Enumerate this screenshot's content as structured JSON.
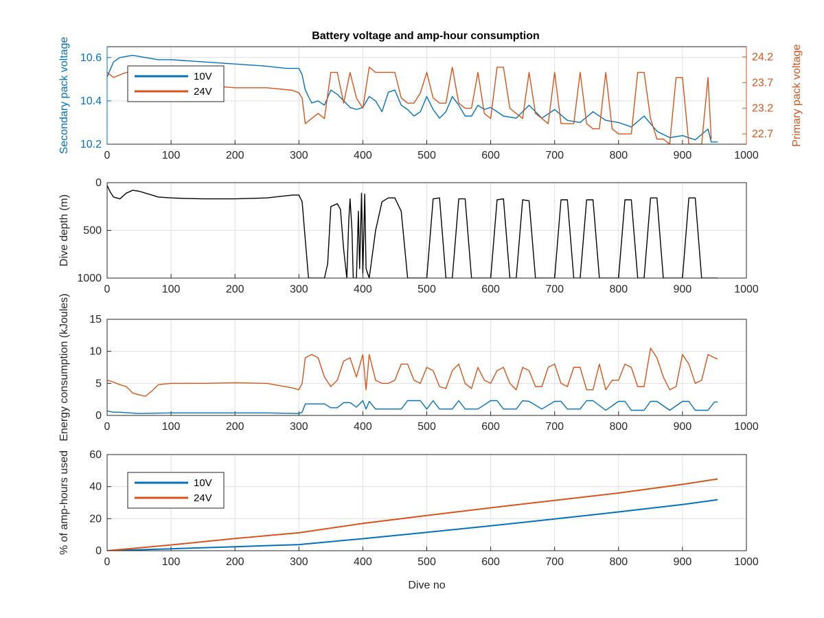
{
  "colors": {
    "series_10v": "#0072BD",
    "series_24v": "#D95319",
    "depth": "#000000",
    "axis": "#262626",
    "grid": "#DFDFDF"
  },
  "chart_data": [
    {
      "type": "line",
      "title": "Battery voltage and amp-hour consumption",
      "xlabel": "",
      "ylabel": "Secondary pack voltage",
      "ylabel_right": "Primary pack voltage",
      "xlim": [
        0,
        1000
      ],
      "ylim": [
        10.2,
        10.65
      ],
      "ylim_right": [
        22.5,
        24.4
      ],
      "xticks": [
        "0",
        "100",
        "200",
        "300",
        "400",
        "500",
        "600",
        "700",
        "800",
        "900",
        "1000"
      ],
      "yticks": [
        "10.2",
        "10.4",
        "10.6"
      ],
      "yticks_right": [
        "22.7",
        "23.2",
        "23.7",
        "24.2"
      ],
      "grid": true,
      "legend": {
        "placement": "top-left",
        "entries": [
          "10V",
          "24V"
        ]
      },
      "series": [
        {
          "name": "10V",
          "axis": "left",
          "x": [
            0,
            10,
            20,
            40,
            60,
            80,
            100,
            150,
            200,
            250,
            280,
            300,
            305,
            310,
            320,
            330,
            340,
            350,
            360,
            370,
            380,
            390,
            400,
            410,
            420,
            430,
            440,
            450,
            460,
            470,
            480,
            490,
            500,
            510,
            520,
            530,
            540,
            550,
            560,
            570,
            580,
            590,
            600,
            620,
            640,
            660,
            680,
            700,
            720,
            740,
            760,
            780,
            800,
            820,
            840,
            860,
            880,
            900,
            920,
            940,
            945,
            955
          ],
          "y": [
            10.51,
            10.58,
            10.6,
            10.61,
            10.6,
            10.59,
            10.59,
            10.58,
            10.57,
            10.56,
            10.55,
            10.55,
            10.52,
            10.45,
            10.39,
            10.4,
            10.38,
            10.45,
            10.43,
            10.4,
            10.37,
            10.36,
            10.37,
            10.42,
            10.4,
            10.35,
            10.44,
            10.45,
            10.38,
            10.36,
            10.33,
            10.35,
            10.42,
            10.36,
            10.32,
            10.35,
            10.42,
            10.38,
            10.33,
            10.33,
            10.38,
            10.36,
            10.37,
            10.33,
            10.32,
            10.38,
            10.32,
            10.36,
            10.31,
            10.3,
            10.35,
            10.31,
            10.3,
            10.28,
            10.33,
            10.26,
            10.23,
            10.24,
            10.22,
            10.27,
            10.21,
            10.21
          ]
        },
        {
          "name": "24V",
          "axis": "right",
          "x": [
            0,
            10,
            30,
            50,
            80,
            100,
            150,
            200,
            250,
            290,
            300,
            305,
            310,
            320,
            330,
            340,
            350,
            360,
            370,
            380,
            390,
            400,
            410,
            420,
            430,
            440,
            450,
            460,
            470,
            480,
            490,
            500,
            510,
            520,
            530,
            540,
            550,
            560,
            570,
            580,
            590,
            600,
            610,
            620,
            630,
            640,
            650,
            660,
            670,
            680,
            690,
            700,
            710,
            720,
            730,
            740,
            750,
            760,
            770,
            780,
            790,
            800,
            810,
            820,
            830,
            840,
            850,
            860,
            870,
            880,
            890,
            900,
            910,
            920,
            930,
            940,
            945
          ],
          "y": [
            23.9,
            23.8,
            23.9,
            23.9,
            23.85,
            23.7,
            23.65,
            23.6,
            23.6,
            23.55,
            23.5,
            23.4,
            22.9,
            23.0,
            23.1,
            23.0,
            23.9,
            23.9,
            23.3,
            23.9,
            23.4,
            23.2,
            24.0,
            23.9,
            23.9,
            23.9,
            23.9,
            23.4,
            23.3,
            23.3,
            23.5,
            23.9,
            23.4,
            23.3,
            23.3,
            24.0,
            23.3,
            23.2,
            23.2,
            23.9,
            23.1,
            23.0,
            24.0,
            24.0,
            23.2,
            23.1,
            23.0,
            23.9,
            23.1,
            23.0,
            22.9,
            23.9,
            22.9,
            22.9,
            22.9,
            23.9,
            22.9,
            22.8,
            22.8,
            23.9,
            22.8,
            22.7,
            22.7,
            22.7,
            23.9,
            23.9,
            23.0,
            22.6,
            22.6,
            22.5,
            23.8,
            23.8,
            22.5,
            22.5,
            22.5,
            23.8,
            22.6
          ]
        }
      ]
    },
    {
      "type": "line",
      "title": "",
      "xlabel": "",
      "ylabel": "Dive depth (m)",
      "xlim": [
        0,
        1000
      ],
      "ylim": [
        0,
        1000
      ],
      "y_reversed": true,
      "xticks": [
        "0",
        "100",
        "200",
        "300",
        "400",
        "500",
        "600",
        "700",
        "800",
        "900",
        "1000"
      ],
      "yticks": [
        "0",
        "500",
        "1000"
      ],
      "grid": true,
      "series": [
        {
          "name": "",
          "x": [
            0,
            5,
            10,
            20,
            30,
            40,
            50,
            60,
            70,
            80,
            100,
            120,
            150,
            200,
            250,
            290,
            300,
            305,
            310,
            315,
            320,
            330,
            340,
            345,
            350,
            360,
            365,
            370,
            375,
            378,
            380,
            383,
            385,
            390,
            393,
            395,
            398,
            400,
            403,
            405,
            410,
            420,
            430,
            440,
            450,
            460,
            470,
            480,
            490,
            500,
            510,
            520,
            530,
            540,
            550,
            560,
            570,
            580,
            590,
            600,
            610,
            620,
            630,
            640,
            650,
            660,
            670,
            680,
            690,
            700,
            710,
            720,
            730,
            740,
            750,
            760,
            770,
            780,
            790,
            800,
            810,
            820,
            830,
            840,
            850,
            860,
            870,
            880,
            890,
            900,
            910,
            920,
            930,
            940,
            945,
            950,
            955
          ],
          "y": [
            30,
            100,
            150,
            170,
            110,
            80,
            90,
            110,
            130,
            150,
            160,
            165,
            170,
            170,
            160,
            130,
            130,
            200,
            600,
            1000,
            1000,
            1000,
            1000,
            850,
            250,
            220,
            280,
            700,
            1000,
            400,
            170,
            500,
            1000,
            1000,
            300,
            900,
            110,
            950,
            120,
            900,
            1000,
            500,
            200,
            160,
            160,
            300,
            1000,
            1000,
            1000,
            1000,
            170,
            160,
            1000,
            1000,
            170,
            170,
            1000,
            1000,
            1000,
            1000,
            180,
            170,
            1000,
            1000,
            180,
            190,
            1000,
            1000,
            1000,
            1000,
            180,
            180,
            1000,
            1000,
            180,
            180,
            1000,
            1000,
            1000,
            1000,
            180,
            180,
            1000,
            1000,
            160,
            160,
            1000,
            1000,
            1000,
            1000,
            160,
            160,
            1000,
            1000,
            1000,
            1000,
            1000
          ]
        }
      ]
    },
    {
      "type": "line",
      "title": "",
      "xlabel": "",
      "ylabel": "Energy consumption (kJoules)",
      "xlim": [
        0,
        1000
      ],
      "ylim": [
        0,
        15
      ],
      "xticks": [
        "0",
        "100",
        "200",
        "300",
        "400",
        "500",
        "600",
        "700",
        "800",
        "900",
        "1000"
      ],
      "yticks": [
        "0",
        "5",
        "10",
        "15"
      ],
      "grid": true,
      "series": [
        {
          "name": "24V",
          "x": [
            0,
            10,
            20,
            30,
            40,
            50,
            60,
            70,
            80,
            100,
            150,
            200,
            250,
            290,
            300,
            305,
            310,
            320,
            330,
            340,
            350,
            360,
            370,
            380,
            390,
            400,
            405,
            410,
            420,
            430,
            440,
            450,
            460,
            470,
            480,
            490,
            500,
            510,
            520,
            530,
            540,
            550,
            560,
            570,
            580,
            590,
            600,
            610,
            620,
            630,
            640,
            650,
            660,
            670,
            680,
            690,
            700,
            710,
            720,
            730,
            740,
            750,
            760,
            770,
            780,
            790,
            800,
            810,
            820,
            830,
            840,
            850,
            860,
            870,
            880,
            890,
            900,
            910,
            920,
            930,
            940,
            950,
            955
          ],
          "y": [
            5.5,
            5.2,
            4.8,
            4.5,
            3.5,
            3.2,
            3.0,
            3.8,
            4.8,
            5.0,
            5.0,
            5.1,
            5.0,
            4.3,
            4.0,
            5.0,
            9.0,
            9.5,
            9.0,
            6.0,
            4.5,
            5.5,
            8.5,
            9.0,
            6.0,
            9.5,
            4.0,
            9.5,
            5.5,
            5.0,
            5.0,
            5.5,
            8.0,
            8.0,
            5.5,
            5.0,
            7.5,
            7.0,
            4.5,
            4.2,
            7.0,
            8.0,
            5.0,
            4.2,
            7.5,
            5.5,
            5.0,
            7.0,
            7.5,
            5.0,
            4.0,
            7.5,
            7.0,
            4.5,
            4.5,
            7.5,
            8.0,
            5.0,
            4.5,
            7.5,
            7.5,
            4.0,
            4.0,
            8.0,
            4.0,
            5.5,
            5.5,
            8.0,
            7.5,
            4.5,
            4.5,
            10.5,
            9.0,
            6.0,
            4.0,
            4.5,
            9.5,
            8.0,
            5.0,
            5.5,
            9.5,
            9.0,
            8.8
          ]
        },
        {
          "name": "10V",
          "x": [
            0,
            10,
            20,
            50,
            100,
            150,
            200,
            250,
            300,
            305,
            310,
            320,
            340,
            350,
            360,
            370,
            380,
            390,
            400,
            405,
            410,
            420,
            440,
            460,
            470,
            490,
            500,
            510,
            520,
            540,
            550,
            560,
            580,
            600,
            610,
            620,
            640,
            650,
            660,
            680,
            700,
            710,
            720,
            740,
            750,
            760,
            780,
            800,
            810,
            820,
            840,
            850,
            860,
            880,
            900,
            910,
            920,
            940,
            950,
            955
          ],
          "y": [
            0.7,
            0.5,
            0.5,
            0.3,
            0.4,
            0.4,
            0.4,
            0.4,
            0.3,
            0.5,
            1.8,
            1.8,
            1.8,
            1.2,
            1.2,
            2.0,
            2.0,
            1.3,
            2.3,
            1.0,
            2.2,
            1.0,
            1.0,
            1.0,
            2.3,
            2.3,
            1.0,
            2.3,
            1.0,
            1.0,
            2.3,
            1.0,
            1.0,
            2.3,
            2.3,
            1.0,
            1.0,
            2.3,
            2.2,
            1.0,
            2.2,
            2.2,
            1.0,
            1.0,
            2.3,
            2.3,
            0.8,
            2.2,
            2.2,
            0.8,
            0.8,
            2.2,
            2.2,
            0.8,
            2.2,
            2.2,
            0.8,
            0.8,
            2.1,
            2.1
          ]
        }
      ]
    },
    {
      "type": "line",
      "title": "",
      "xlabel": "Dive no",
      "ylabel": "% of amp-hours used",
      "xlim": [
        0,
        1000
      ],
      "ylim": [
        0,
        60
      ],
      "xticks": [
        "0",
        "100",
        "200",
        "300",
        "400",
        "500",
        "600",
        "700",
        "800",
        "900",
        "1000"
      ],
      "yticks": [
        "0",
        "20",
        "40",
        "60"
      ],
      "grid": true,
      "legend": {
        "placement": "top-left",
        "entries": [
          "10V",
          "24V"
        ]
      },
      "series": [
        {
          "name": "10V",
          "x": [
            0,
            100,
            200,
            300,
            400,
            500,
            600,
            700,
            800,
            900,
            955
          ],
          "y": [
            0,
            1.2,
            2.5,
            3.8,
            7.5,
            11.5,
            15.5,
            19.8,
            24.2,
            28.8,
            31.8
          ]
        },
        {
          "name": "24V",
          "x": [
            0,
            100,
            200,
            300,
            400,
            500,
            600,
            700,
            800,
            900,
            955
          ],
          "y": [
            0,
            3.6,
            7.6,
            11.2,
            17.0,
            22.0,
            26.8,
            31.4,
            36.0,
            41.4,
            44.8
          ]
        }
      ]
    }
  ]
}
